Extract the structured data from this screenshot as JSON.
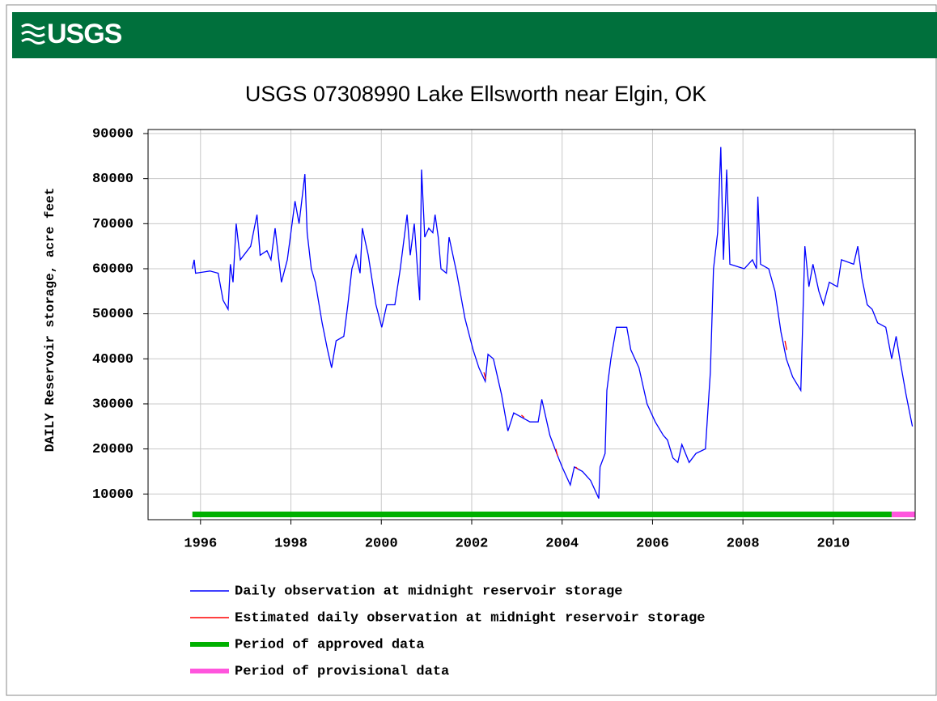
{
  "header": {
    "logo": "USGS"
  },
  "chart_data": {
    "type": "line",
    "title": "USGS 07308990 Lake Ellsworth near Elgin, OK",
    "y_label": "DAILY Reservoir storage, acre feet",
    "xlim": [
      1994.84,
      2011.81
    ],
    "xticks": [
      1996,
      1998,
      2000,
      2002,
      2004,
      2006,
      2008,
      2010
    ],
    "ylim": [
      4300,
      90900
    ],
    "yticks": [
      10000,
      20000,
      30000,
      40000,
      50000,
      60000,
      70000,
      80000,
      90000
    ],
    "grid": true,
    "series": [
      {
        "name": "Daily observation at midnight reservoir storage",
        "color": "#0000ff",
        "x": [
          1995.82,
          1995.86,
          1995.89,
          1996.21,
          1996.39,
          1996.5,
          1996.61,
          1996.66,
          1996.72,
          1996.79,
          1996.88,
          1997.11,
          1997.25,
          1997.32,
          1997.47,
          1997.56,
          1997.65,
          1997.79,
          1997.92,
          1998.09,
          1998.18,
          1998.31,
          1998.36,
          1998.45,
          1998.54,
          1998.69,
          1998.81,
          1998.9,
          1999.0,
          1999.17,
          1999.26,
          1999.35,
          1999.44,
          1999.53,
          1999.58,
          1999.71,
          1999.88,
          2000.01,
          2000.12,
          2000.3,
          2000.42,
          2000.57,
          2000.64,
          2000.73,
          2000.82,
          2000.85,
          2000.89,
          2000.96,
          2001.05,
          2001.14,
          2001.19,
          2001.26,
          2001.32,
          2001.44,
          2001.5,
          2001.67,
          2001.85,
          2002.03,
          2002.16,
          2002.3,
          2002.36,
          2002.48,
          2002.66,
          2002.8,
          2002.93,
          2003.11,
          2003.29,
          2003.47,
          2003.55,
          2003.73,
          2003.88,
          2004.0,
          2004.18,
          2004.27,
          2004.45,
          2004.63,
          2004.81,
          2004.84,
          2004.95,
          2004.99,
          2005.08,
          2005.2,
          2005.43,
          2005.52,
          2005.7,
          2005.88,
          2006.06,
          2006.24,
          2006.33,
          2006.45,
          2006.56,
          2006.65,
          2006.81,
          2006.96,
          2007.17,
          2007.28,
          2007.35,
          2007.44,
          2007.51,
          2007.57,
          2007.64,
          2007.71,
          2008.03,
          2008.21,
          2008.3,
          2008.33,
          2008.39,
          2008.57,
          2008.71,
          2008.84,
          2008.96,
          2009.1,
          2009.28,
          2009.37,
          2009.46,
          2009.55,
          2009.68,
          2009.78,
          2009.91,
          2010.09,
          2010.18,
          2010.45,
          2010.54,
          2010.63,
          2010.75,
          2010.86,
          2010.98,
          2011.16,
          2011.29,
          2011.39,
          2011.47,
          2011.61,
          2011.75
        ],
        "values": [
          60000,
          62000,
          59000,
          59500,
          59000,
          53000,
          51000,
          61000,
          57000,
          70000,
          62000,
          65000,
          72000,
          63000,
          64000,
          62000,
          69000,
          57000,
          62000,
          75000,
          70000,
          81000,
          68000,
          60000,
          57000,
          48000,
          42000,
          38000,
          44000,
          45000,
          52000,
          60000,
          63000,
          59000,
          69000,
          63000,
          52000,
          47000,
          52000,
          52000,
          60000,
          72000,
          63000,
          70000,
          57000,
          53000,
          82000,
          67000,
          69000,
          68000,
          72000,
          67000,
          60000,
          59000,
          67000,
          59000,
          49000,
          42000,
          38000,
          35000,
          41000,
          40000,
          32000,
          24000,
          28000,
          27000,
          26000,
          26000,
          31000,
          23000,
          19000,
          16000,
          12000,
          16000,
          15000,
          13000,
          9000,
          16000,
          19000,
          33000,
          40000,
          47000,
          47000,
          42000,
          38000,
          30000,
          26000,
          23000,
          22000,
          18000,
          17000,
          21000,
          17000,
          19000,
          20000,
          37000,
          60000,
          68000,
          87000,
          62000,
          82000,
          61000,
          60000,
          62000,
          60000,
          76000,
          61000,
          60000,
          55000,
          46000,
          40000,
          36000,
          33000,
          65000,
          56000,
          61000,
          55000,
          52000,
          57000,
          56000,
          62000,
          61000,
          65000,
          58000,
          52000,
          51000,
          48000,
          47000,
          40000,
          45000,
          40000,
          32000,
          25000
        ]
      },
      {
        "name": "Estimated daily observation at midnight reservoir storage",
        "color": "#ff0000",
        "x": [
          2002.27,
          2002.31,
          2002.32,
          2003.1,
          2003.16,
          2003.17,
          2003.86,
          2003.9,
          2003.91,
          2004.3,
          2004.35,
          2004.36,
          2008.93,
          2008.97
        ],
        "values": [
          37000,
          35500,
          null,
          27500,
          27000,
          null,
          20000,
          18500,
          null,
          16000,
          15500,
          null,
          44000,
          42000
        ]
      }
    ],
    "periods": [
      {
        "name": "Period of approved data",
        "color": "#00b000",
        "start": 1995.82,
        "end": 2011.29
      },
      {
        "name": "Period of provisional data",
        "color": "#ff55dd",
        "start": 2011.29,
        "end": 2011.81
      }
    ]
  }
}
